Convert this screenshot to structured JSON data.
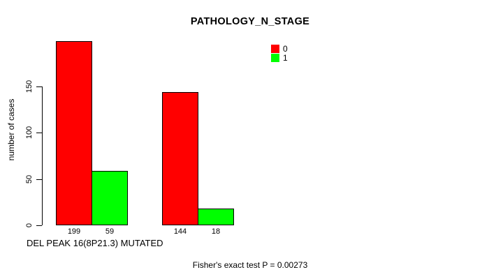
{
  "chart_data": {
    "type": "bar",
    "title": "PATHOLOGY_N_STAGE",
    "ylabel": "number of cases",
    "xlabel": "DEL PEAK 16(8P21.3) MUTATED",
    "annotation": "Fisher's exact test P = 0.00273",
    "series": [
      {
        "name": "0",
        "color": "#FF0000",
        "values": [
          199,
          144
        ]
      },
      {
        "name": "1",
        "color": "#00FF00",
        "values": [
          59,
          18
        ]
      }
    ],
    "bar_value_labels": [
      "199",
      "59",
      "144",
      "18"
    ],
    "yticks": [
      0,
      50,
      100,
      150
    ],
    "ylim": [
      0,
      150
    ],
    "axis_color": "#000000",
    "background_color": "#FFFFFF",
    "grid": false,
    "legend_position": "top-right"
  }
}
